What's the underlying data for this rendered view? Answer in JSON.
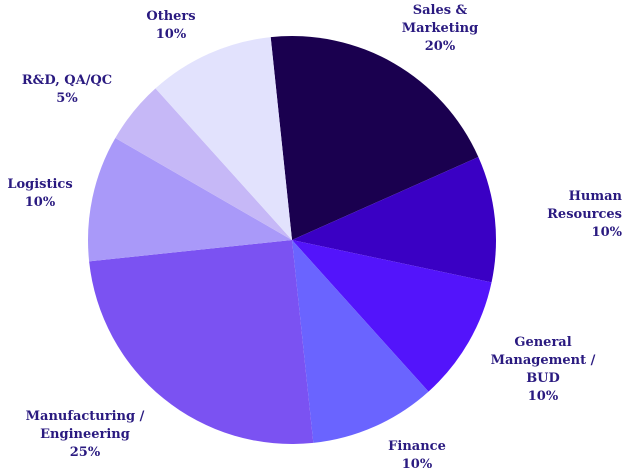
{
  "chart_data": {
    "type": "pie",
    "categories": [
      "Sales & Marketing",
      "Human Resources",
      "General Management / BUD",
      "Finance",
      "Manufacturing / Engineering",
      "Logistics",
      "R&D, QA/QC",
      "Others"
    ],
    "values": [
      20,
      10,
      10,
      10,
      25,
      10,
      5,
      10
    ],
    "value_labels": [
      "20%",
      "10%",
      "10%",
      "10%",
      "25%",
      "10%",
      "5%",
      "10%"
    ],
    "colors": [
      "#1a004f",
      "#3a00c4",
      "#5314fb",
      "#6a64ff",
      "#7b52f2",
      "#a999f9",
      "#c6b8f7",
      "#e2e2fd"
    ]
  }
}
